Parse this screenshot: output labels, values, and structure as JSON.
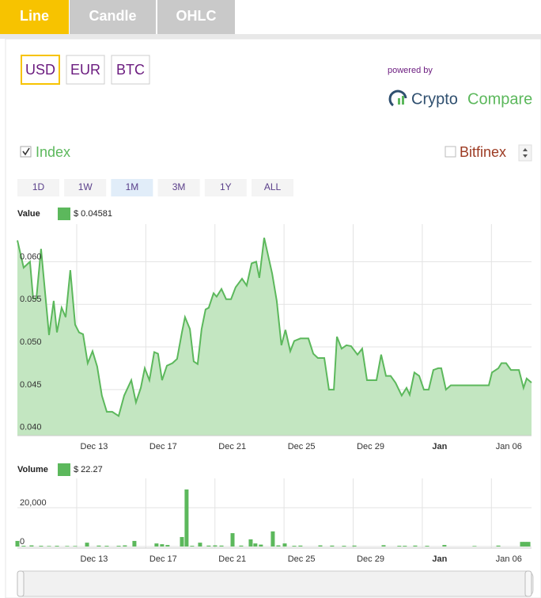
{
  "tabs": [
    "Line",
    "Candle",
    "OHLC"
  ],
  "currencies": [
    "USD",
    "EUR",
    "BTC"
  ],
  "powered_by": "powered by",
  "logo": {
    "first": "Crypto",
    "second": "Compare"
  },
  "markets": [
    "Index",
    "Bitfinex"
  ],
  "ranges": [
    "1D",
    "1W",
    "1M",
    "3M",
    "1Y",
    "ALL"
  ],
  "chart_data": [
    {
      "type": "area",
      "title": "Value",
      "current": "$ 0.04581",
      "grid": true,
      "x": [
        9.57,
        9.93,
        10.3,
        10.48,
        10.67,
        10.94,
        11.4,
        11.67,
        11.86,
        12.13,
        12.36,
        12.63,
        12.91,
        13.14,
        13.37,
        13.64,
        13.92,
        14.19,
        14.46,
        14.74,
        15.06,
        15.43,
        15.75,
        16.16,
        16.43,
        16.71,
        16.94,
        17.21,
        17.49,
        17.71,
        17.94,
        18.22,
        18.54,
        18.81,
        19.09,
        19.27,
        19.55,
        19.77,
        20.0,
        20.23,
        20.46,
        20.64,
        20.92,
        21.1,
        21.38,
        21.65,
        21.93,
        22.2,
        22.57,
        22.84,
        23.12,
        23.39,
        23.57,
        23.85,
        24.31,
        24.58,
        24.85,
        25.08,
        25.36,
        25.59,
        25.95,
        26.41,
        26.69,
        26.96,
        27.33,
        27.6,
        27.88,
        28.06,
        28.33,
        28.61,
        28.88,
        29.25,
        29.52,
        29.8,
        30.35,
        30.62,
        30.9,
        31.17,
        31.45,
        31.81,
        32.09,
        32.27,
        32.54,
        32.82,
        33.09,
        33.37,
        33.64,
        33.92,
        34.1,
        34.37,
        34.65,
        35.11,
        36.02,
        36.85,
        37.03,
        37.4,
        37.58,
        37.85,
        38.13,
        38.59,
        38.86,
        39.04,
        39.32
      ],
      "series": [
        {
          "name": "Value",
          "color": "#5cb85c",
          "fill": "#c3e6c1",
          "values": [
            0.0625,
            0.0593,
            0.06,
            0.0557,
            0.0557,
            0.0615,
            0.0514,
            0.0554,
            0.0517,
            0.0546,
            0.0535,
            0.059,
            0.0526,
            0.0517,
            0.0515,
            0.0481,
            0.0495,
            0.0477,
            0.0443,
            0.0424,
            0.0424,
            0.0419,
            0.0443,
            0.0461,
            0.0435,
            0.0452,
            0.0475,
            0.0461,
            0.0494,
            0.0492,
            0.0461,
            0.0478,
            0.0481,
            0.0486,
            0.0517,
            0.0535,
            0.0521,
            0.0483,
            0.048,
            0.0521,
            0.0544,
            0.0546,
            0.0563,
            0.0559,
            0.0568,
            0.0556,
            0.0556,
            0.057,
            0.058,
            0.0572,
            0.0598,
            0.06,
            0.0581,
            0.0628,
            0.0586,
            0.0554,
            0.0502,
            0.052,
            0.0495,
            0.0507,
            0.051,
            0.051,
            0.0492,
            0.0487,
            0.0487,
            0.045,
            0.045,
            0.0512,
            0.0498,
            0.0502,
            0.0501,
            0.0491,
            0.0498,
            0.0461,
            0.0461,
            0.0491,
            0.0466,
            0.0466,
            0.0458,
            0.0443,
            0.0452,
            0.0444,
            0.047,
            0.0466,
            0.045,
            0.045,
            0.0473,
            0.0475,
            0.0475,
            0.045,
            0.0455,
            0.0455,
            0.0455,
            0.0455,
            0.047,
            0.0475,
            0.0481,
            0.0481,
            0.0473,
            0.0473,
            0.0452,
            0.0463,
            0.04581
          ]
        }
      ],
      "xlim": [
        9.57,
        39.32
      ],
      "xticks": [
        {
          "value": 13,
          "label": "Dec 13"
        },
        {
          "value": 17,
          "label": "Dec 17"
        },
        {
          "value": 21,
          "label": "Dec 21"
        },
        {
          "value": 25,
          "label": "Dec 25"
        },
        {
          "value": 29,
          "label": "Dec 29"
        },
        {
          "value": 33,
          "label": "Jan"
        },
        {
          "value": 37,
          "label": "Jan 06"
        }
      ],
      "ylim": [
        0.0396,
        0.0644
      ],
      "yticks": [
        {
          "value": 0.04,
          "label": "0.040"
        },
        0.045,
        {
          "value": 0.05,
          "label": "0.050"
        },
        0.055,
        {
          "value": 0.06,
          "label": "0.060"
        }
      ]
    },
    {
      "type": "bar",
      "title": "Volume",
      "current": "$ 22.27",
      "grid": true,
      "x": [
        9.57,
        9.93,
        10.39,
        10.94,
        11.4,
        11.86,
        12.45,
        12.91,
        13.6,
        14.28,
        14.74,
        15.43,
        15.79,
        16.34,
        17.62,
        17.94,
        18.26,
        19.09,
        19.36,
        19.68,
        20.14,
        20.64,
        21.01,
        21.38,
        22.02,
        22.52,
        23.07,
        23.34,
        23.66,
        24.35,
        24.67,
        25.04,
        25.59,
        25.95,
        27.1,
        27.78,
        28.47,
        29.07,
        30.76,
        31.67,
        31.99,
        32.59,
        33.28,
        34.28,
        36.02,
        37.4,
        38.77,
        38.95,
        39.14
      ],
      "series": [
        {
          "name": "Volume",
          "color": "#5cb85c",
          "values": [
            2900,
            400,
            600,
            400,
            300,
            400,
            300,
            300,
            2000,
            500,
            400,
            400,
            600,
            2900,
            1600,
            1200,
            800,
            4900,
            29400,
            400,
            2000,
            500,
            600,
            500,
            6900,
            500,
            3700,
            1600,
            1000,
            7800,
            600,
            1600,
            400,
            500,
            600,
            500,
            400,
            500,
            700,
            400,
            400,
            500,
            400,
            800,
            300,
            500,
            2400,
            2400,
            2400
          ]
        }
      ],
      "xlim": [
        9.57,
        39.32
      ],
      "xticks": [
        {
          "value": 13,
          "label": "Dec 13"
        },
        {
          "value": 17,
          "label": "Dec 17"
        },
        {
          "value": 21,
          "label": "Dec 21"
        },
        {
          "value": 25,
          "label": "Dec 25"
        },
        {
          "value": 29,
          "label": "Dec 29"
        },
        {
          "value": 33,
          "label": "Jan"
        },
        {
          "value": 37,
          "label": "Jan 06"
        }
      ],
      "ylim": [
        -800,
        35100
      ],
      "yticks": [
        0,
        {
          "value": 20000,
          "label": "20,000"
        }
      ]
    }
  ]
}
